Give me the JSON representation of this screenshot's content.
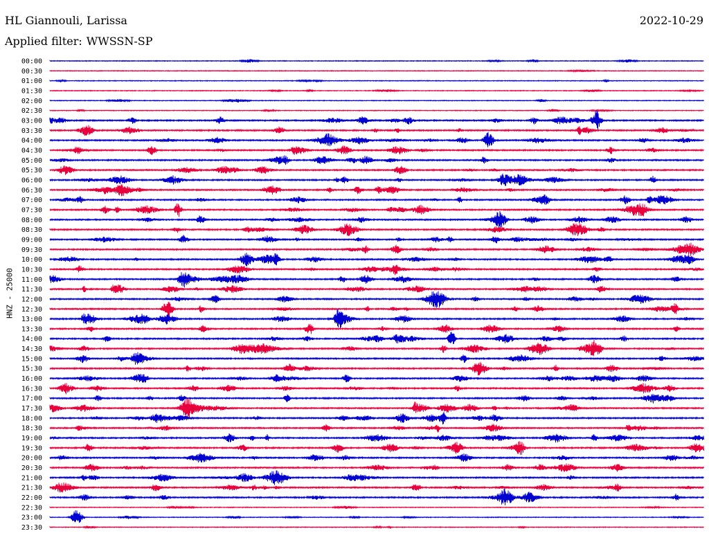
{
  "header": {
    "station": "HL Giannouli, Larissa",
    "date": "2022-10-29",
    "filter_label": "Applied filter:",
    "filter_value": "WWSSN-SP"
  },
  "colors": {
    "even_trace": "#0000d0",
    "odd_trace": "#e8003c"
  },
  "chart_data": {
    "type": "line",
    "title": "HL Giannouli, Larissa",
    "subtitle": "Applied filter: WWSSN-SP",
    "date": "2022-10-29",
    "ylabel": "HNZ - 25000",
    "xlabel": "",
    "grid": false,
    "row_labels": [
      "00:00",
      "00:30",
      "01:00",
      "01:30",
      "02:00",
      "02:30",
      "03:00",
      "03:30",
      "04:00",
      "04:30",
      "05:00",
      "05:30",
      "06:00",
      "06:30",
      "07:00",
      "07:30",
      "08:00",
      "08:30",
      "09:00",
      "09:30",
      "10:00",
      "10:30",
      "11:00",
      "11:30",
      "12:00",
      "12:30",
      "13:00",
      "13:30",
      "14:00",
      "14:30",
      "15:00",
      "15:30",
      "16:00",
      "16:30",
      "17:00",
      "17:30",
      "18:00",
      "18:30",
      "19:00",
      "19:30",
      "20:00",
      "20:30",
      "21:00",
      "21:30",
      "22:00",
      "22:30",
      "23:00",
      "23:30"
    ],
    "row_colors": [
      "blue",
      "red"
    ]
  }
}
